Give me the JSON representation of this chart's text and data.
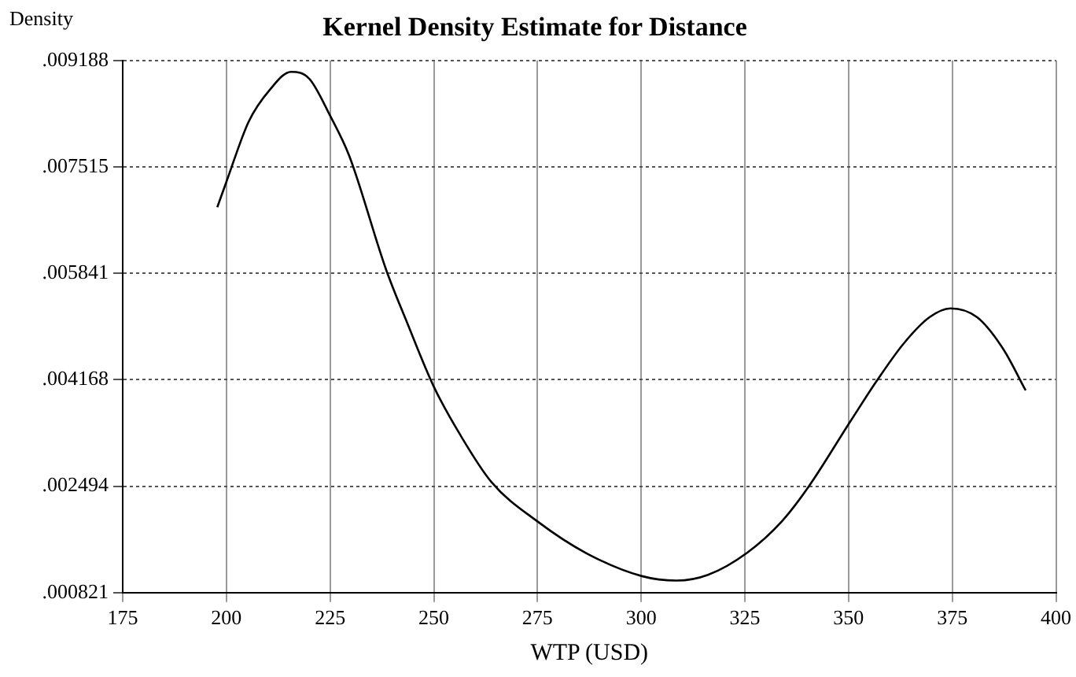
{
  "chart_data": {
    "type": "line",
    "title": "Kernel Density Estimate for Distance",
    "xlabel": "WTP (USD)",
    "ylabel": "Density",
    "xlim": [
      175,
      400
    ],
    "xticks": [
      175,
      200,
      225,
      250,
      275,
      300,
      325,
      350,
      375,
      400
    ],
    "ylim": [
      0.000821,
      0.009188
    ],
    "yticks": [
      {
        "value": 0.000821,
        "label": ".000821"
      },
      {
        "value": 0.002494,
        "label": ".002494"
      },
      {
        "value": 0.004168,
        "label": ".004168"
      },
      {
        "value": 0.005841,
        "label": ".005841"
      },
      {
        "value": 0.007515,
        "label": ".007515"
      },
      {
        "value": 0.009188,
        "label": ".009188"
      }
    ],
    "grid": true,
    "marker": "none",
    "line_style": "solid",
    "series": [
      {
        "color": "#000000",
        "x": [
          197.8,
          200,
          205.4,
          210.5,
          215.6,
          220,
          225,
          229.6,
          238.5,
          243.6,
          250,
          256.3,
          263.9,
          275,
          286.8,
          300.2,
          308.5,
          316.1,
          325.6,
          333.9,
          340.3,
          350.5,
          356.8,
          363.2,
          369.5,
          374.6,
          381,
          387.3,
          392.7
        ],
        "values": [
          0.00688,
          0.00728,
          0.00823,
          0.00873,
          0.00901,
          0.0089,
          0.00832,
          0.00769,
          0.0059,
          0.00506,
          0.00406,
          0.00331,
          0.00256,
          0.00194,
          0.00144,
          0.00108,
          0.00101,
          0.0011,
          0.00145,
          0.00194,
          0.00248,
          0.00352,
          0.00415,
          0.00473,
          0.00515,
          0.00529,
          0.00515,
          0.00465,
          0.004
        ]
      }
    ]
  }
}
